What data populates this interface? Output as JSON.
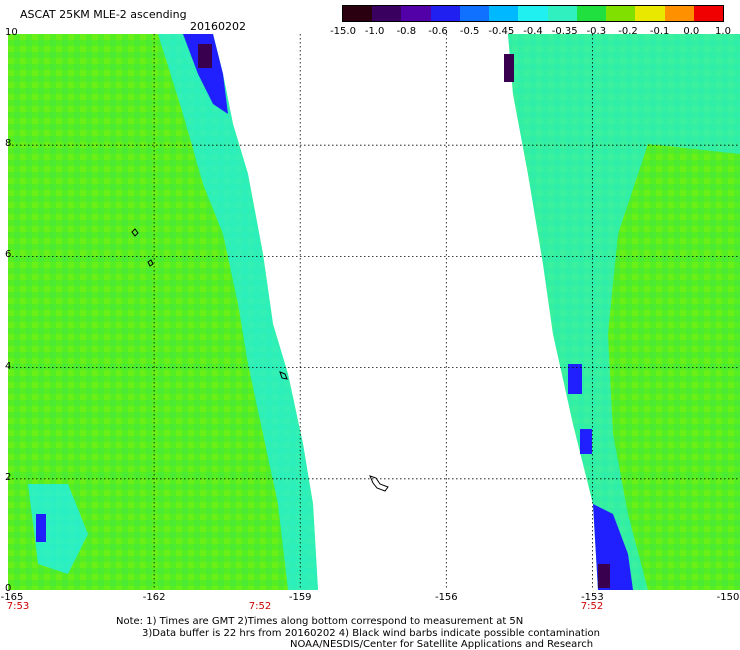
{
  "header": {
    "title": "ASCAT 25KM MLE-2 ascending",
    "date": "20160202"
  },
  "colorbar": {
    "labels": [
      "-15.0",
      "-1.0",
      "-0.8",
      "-0.6",
      "-0.5",
      "-0.45",
      "-0.4",
      "-0.35",
      "-0.3",
      "-0.2",
      "-0.1",
      "0.0",
      "1.0"
    ],
    "colors": [
      "#2a0010",
      "#3a0060",
      "#5200a8",
      "#2020f0",
      "#1070ff",
      "#00b8ff",
      "#20f0f0",
      "#30f0c0",
      "#20e040",
      "#80e000",
      "#e8e800",
      "#ff9000",
      "#f00000"
    ]
  },
  "map": {
    "y_ticks": [
      "0",
      "2",
      "4",
      "6",
      "8",
      "10"
    ],
    "x_ticks": [
      "-165",
      "-162",
      "-159",
      "-156",
      "-153",
      "-150"
    ],
    "time_labels": [
      "7:53",
      "7:52",
      "7:52"
    ],
    "colors": {
      "green": "#55ee22",
      "light_green": "#88f000",
      "cyan": "#22f0e8",
      "blue": "#2020ff",
      "dark_purple": "#3a0050",
      "red_text": "#cc0000"
    }
  },
  "notes": {
    "line1": "Note: 1) Times are GMT 2)Times along bottom correspond to measurement at 5N",
    "line2": "3)Data buffer is 22 hrs from 20160202 4) Black wind barbs indicate possible contamination",
    "line3": "NOAA/NESDIS/Center for Satellite Applications and Research"
  }
}
